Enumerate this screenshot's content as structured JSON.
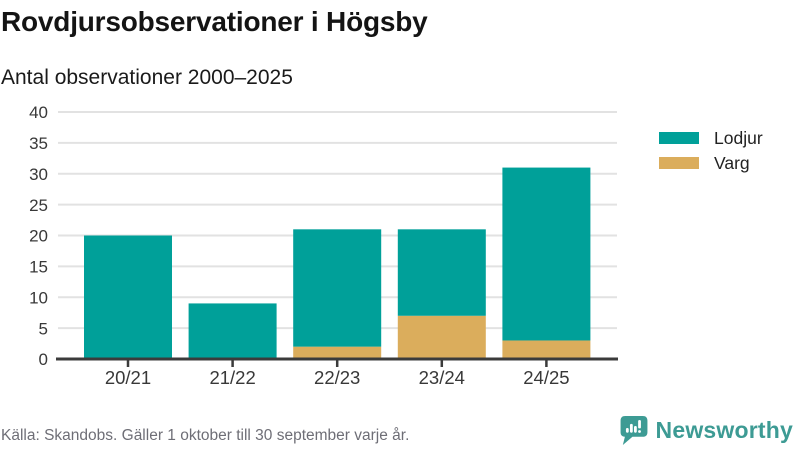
{
  "header": {
    "title": "Rovdjursobservationer i Högsby",
    "subtitle": "Antal observationer 2000–2025"
  },
  "chart_data": {
    "type": "bar",
    "stacked": true,
    "title": "Rovdjursobservationer i Högsby",
    "subtitle": "Antal observationer 2000–2025",
    "categories": [
      "20/21",
      "21/22",
      "22/23",
      "23/24",
      "24/25"
    ],
    "series": [
      {
        "name": "Varg",
        "color": "#DBAD5C",
        "values": [
          0,
          0,
          2,
          7,
          3
        ]
      },
      {
        "name": "Lodjur",
        "color": "#00A099",
        "values": [
          20,
          9,
          19,
          14,
          28
        ]
      }
    ],
    "stack_totals": [
      20,
      9,
      21,
      21,
      31
    ],
    "xlabel": "",
    "ylabel": "",
    "ylim": [
      0,
      40
    ],
    "ytick_step": 5,
    "yticks": [
      0,
      5,
      10,
      15,
      20,
      25,
      30,
      35,
      40
    ],
    "grid": true,
    "legend_position": "right"
  },
  "legend": {
    "items": [
      {
        "label": "Lodjur",
        "color": "#00A099"
      },
      {
        "label": "Varg",
        "color": "#DBAD5C"
      }
    ]
  },
  "footer": {
    "source": "Källa: Skandobs. Gäller 1 oktober till 30 september varje år."
  },
  "brand": {
    "name": "Newsworthy",
    "icon": "bar-chart-speech-bubble-icon",
    "color": "#3D9B94"
  },
  "colors": {
    "lodjur": "#00A099",
    "varg": "#DBAD5C",
    "grid": "#E2E2E2",
    "axis": "#3B3B3B",
    "axis_text": "#383838",
    "title_text": "#141414",
    "footer_text": "#6E6E76",
    "brand": "#3D9B94",
    "background": "#FFFFFF"
  }
}
